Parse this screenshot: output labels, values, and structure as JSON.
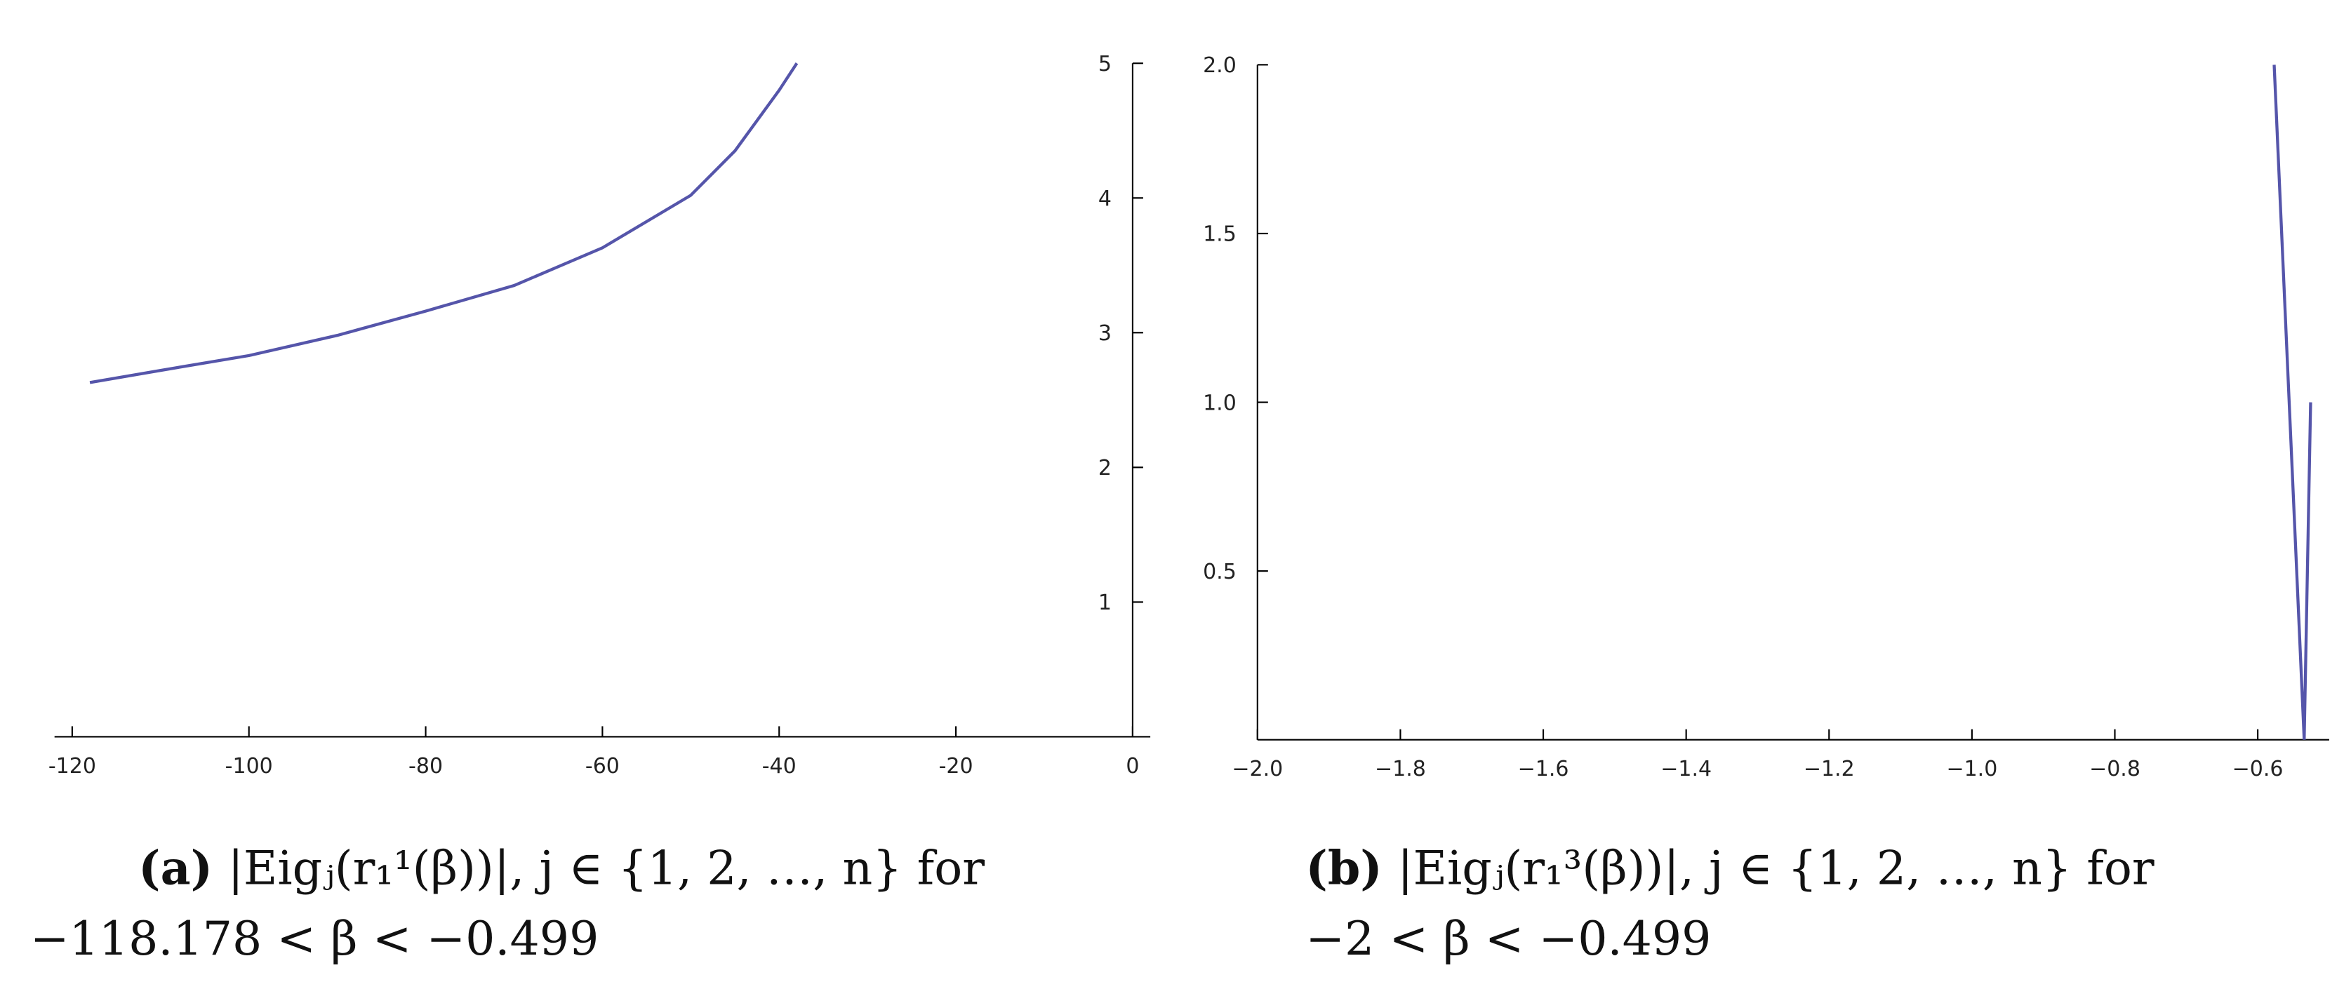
{
  "chart_data": [
    {
      "type": "line",
      "label": "(a)",
      "caption": [
        "|Eigⱼ(r₁¹(β))|,  j  ∈  {1, 2, …, n}  for",
        "−118.178 < β < −0.499"
      ],
      "x": [
        -118,
        -110,
        -100,
        -90,
        -80,
        -70,
        -60,
        -50,
        -45,
        -40,
        -38
      ],
      "values": [
        2.63,
        2.72,
        2.83,
        2.98,
        3.16,
        3.35,
        3.63,
        4.02,
        4.35,
        4.8,
        5.0
      ],
      "color": "#5555aa",
      "xlim": [
        -122,
        2
      ],
      "ylim": [
        0,
        5
      ],
      "xticks": [
        -120,
        -100,
        -80,
        -60,
        -40,
        -20,
        0
      ],
      "yticks": [
        1,
        2,
        3,
        4,
        5
      ]
    },
    {
      "type": "line",
      "label": "(b)",
      "caption": [
        "|Eigⱼ(r₁³(β))|,  j  ∈  {1, 2, …, n}  for",
        "−2 < β < −0.499"
      ],
      "x": [
        -0.577,
        -0.535,
        -0.526
      ],
      "values": [
        2.0,
        0.0,
        1.0
      ],
      "color": "#5555aa",
      "xlim": [
        -2.0,
        -0.5
      ],
      "ylim": [
        0,
        2
      ],
      "xticks": [
        {
          "value": -2.0,
          "label": "−2.0"
        },
        {
          "value": -1.8,
          "label": "−1.8"
        },
        {
          "value": -1.6,
          "label": "−1.6"
        },
        {
          "value": -1.4,
          "label": "−1.4"
        },
        {
          "value": -1.2,
          "label": "−1.2"
        },
        {
          "value": -1.0,
          "label": "−1.0"
        },
        {
          "value": -0.8,
          "label": "−0.8"
        },
        {
          "value": -0.6,
          "label": "−0.6"
        }
      ],
      "yticks": [
        {
          "value": 0.5,
          "label": "0.5"
        },
        {
          "value": 1.0,
          "label": "1.0"
        },
        {
          "value": 1.5,
          "label": "1.5"
        },
        {
          "value": 2.0,
          "label": "2.0"
        }
      ]
    }
  ]
}
